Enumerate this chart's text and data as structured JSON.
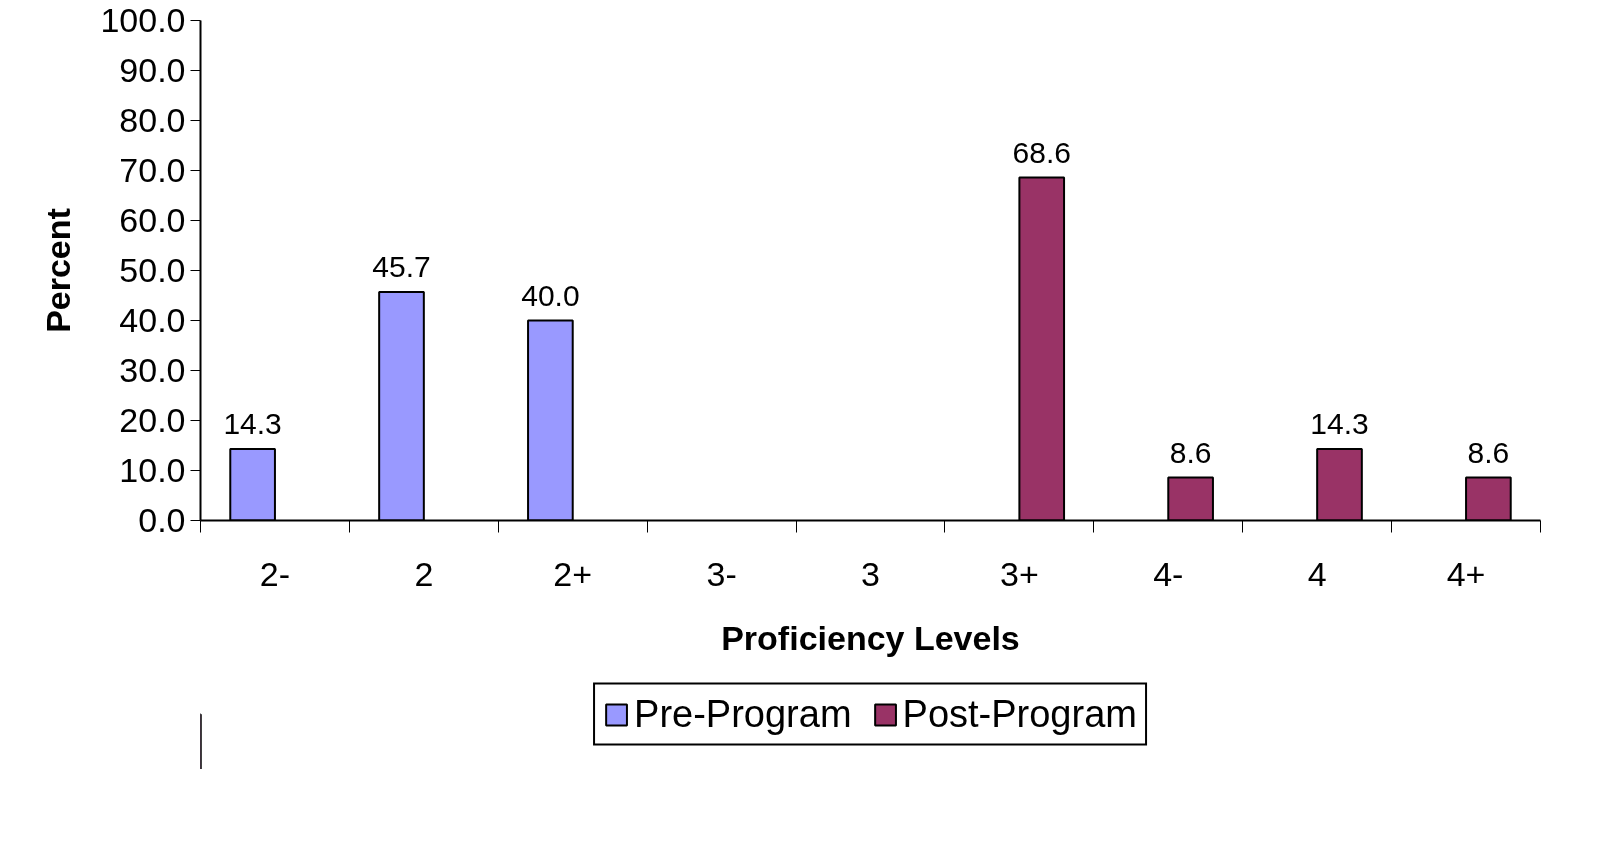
{
  "chart_data": {
    "type": "bar",
    "xlabel": "Proficiency Levels",
    "ylabel": "Percent",
    "categories": [
      "2-",
      "2",
      "2+",
      "3-",
      "3",
      "3+",
      "4-",
      "4",
      "4+"
    ],
    "series": [
      {
        "name": "Pre-Program",
        "color": "#9999ff",
        "values": [
          14.3,
          45.7,
          40.0,
          null,
          null,
          null,
          null,
          null,
          null
        ],
        "value_labels": [
          "14.3",
          "45.7",
          "40.0",
          null,
          null,
          null,
          null,
          null,
          null
        ]
      },
      {
        "name": "Post-Program",
        "color": "#993366",
        "values": [
          null,
          null,
          null,
          null,
          null,
          68.6,
          8.6,
          14.3,
          8.6
        ],
        "value_labels": [
          null,
          null,
          null,
          null,
          null,
          "68.6",
          "8.6",
          "14.3",
          "8.6"
        ]
      }
    ],
    "ylim": [
      0,
      100
    ],
    "yticks": [
      {
        "value": 0,
        "label": "0.0"
      },
      {
        "value": 10,
        "label": "10.0"
      },
      {
        "value": 20,
        "label": "20.0"
      },
      {
        "value": 30,
        "label": "30.0"
      },
      {
        "value": 40,
        "label": "40.0"
      },
      {
        "value": 50,
        "label": "50.0"
      },
      {
        "value": 60,
        "label": "60.0"
      },
      {
        "value": 70,
        "label": "70.0"
      },
      {
        "value": 80,
        "label": "80.0"
      },
      {
        "value": 90,
        "label": "90.0"
      },
      {
        "value": 100,
        "label": "100.0"
      }
    ],
    "grid": false,
    "legend": "bottom"
  }
}
